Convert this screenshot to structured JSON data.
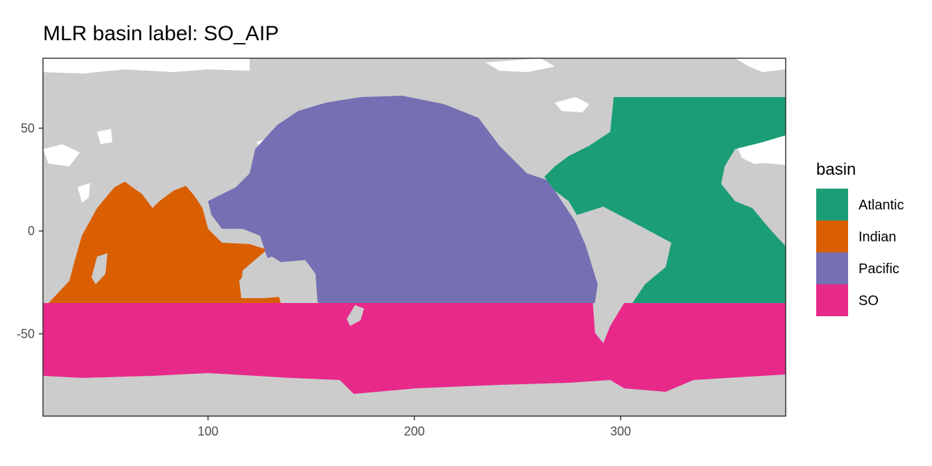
{
  "title": "MLR basin label: SO_AIP",
  "x_axis": {
    "ticks": [
      {
        "value": 100,
        "label": "100"
      },
      {
        "value": 200,
        "label": "200"
      },
      {
        "value": 300,
        "label": "300"
      }
    ],
    "range": [
      20,
      380
    ]
  },
  "y_axis": {
    "ticks": [
      {
        "value": 50,
        "label": "50"
      },
      {
        "value": 0,
        "label": "0"
      },
      {
        "value": -50,
        "label": "-50"
      }
    ],
    "range": [
      -90,
      84
    ]
  },
  "legend": {
    "title": "basin",
    "items": [
      {
        "label": "Atlantic",
        "color": "#1b9e77"
      },
      {
        "label": "Indian",
        "color": "#d95f02"
      },
      {
        "label": "Pacific",
        "color": "#7570b3"
      },
      {
        "label": "SO",
        "color": "#e7298a"
      }
    ]
  },
  "colors": {
    "land": "#cccccc",
    "background": "#ffffff",
    "gridline": "#ebebeb",
    "panel_border": "#333333"
  }
}
